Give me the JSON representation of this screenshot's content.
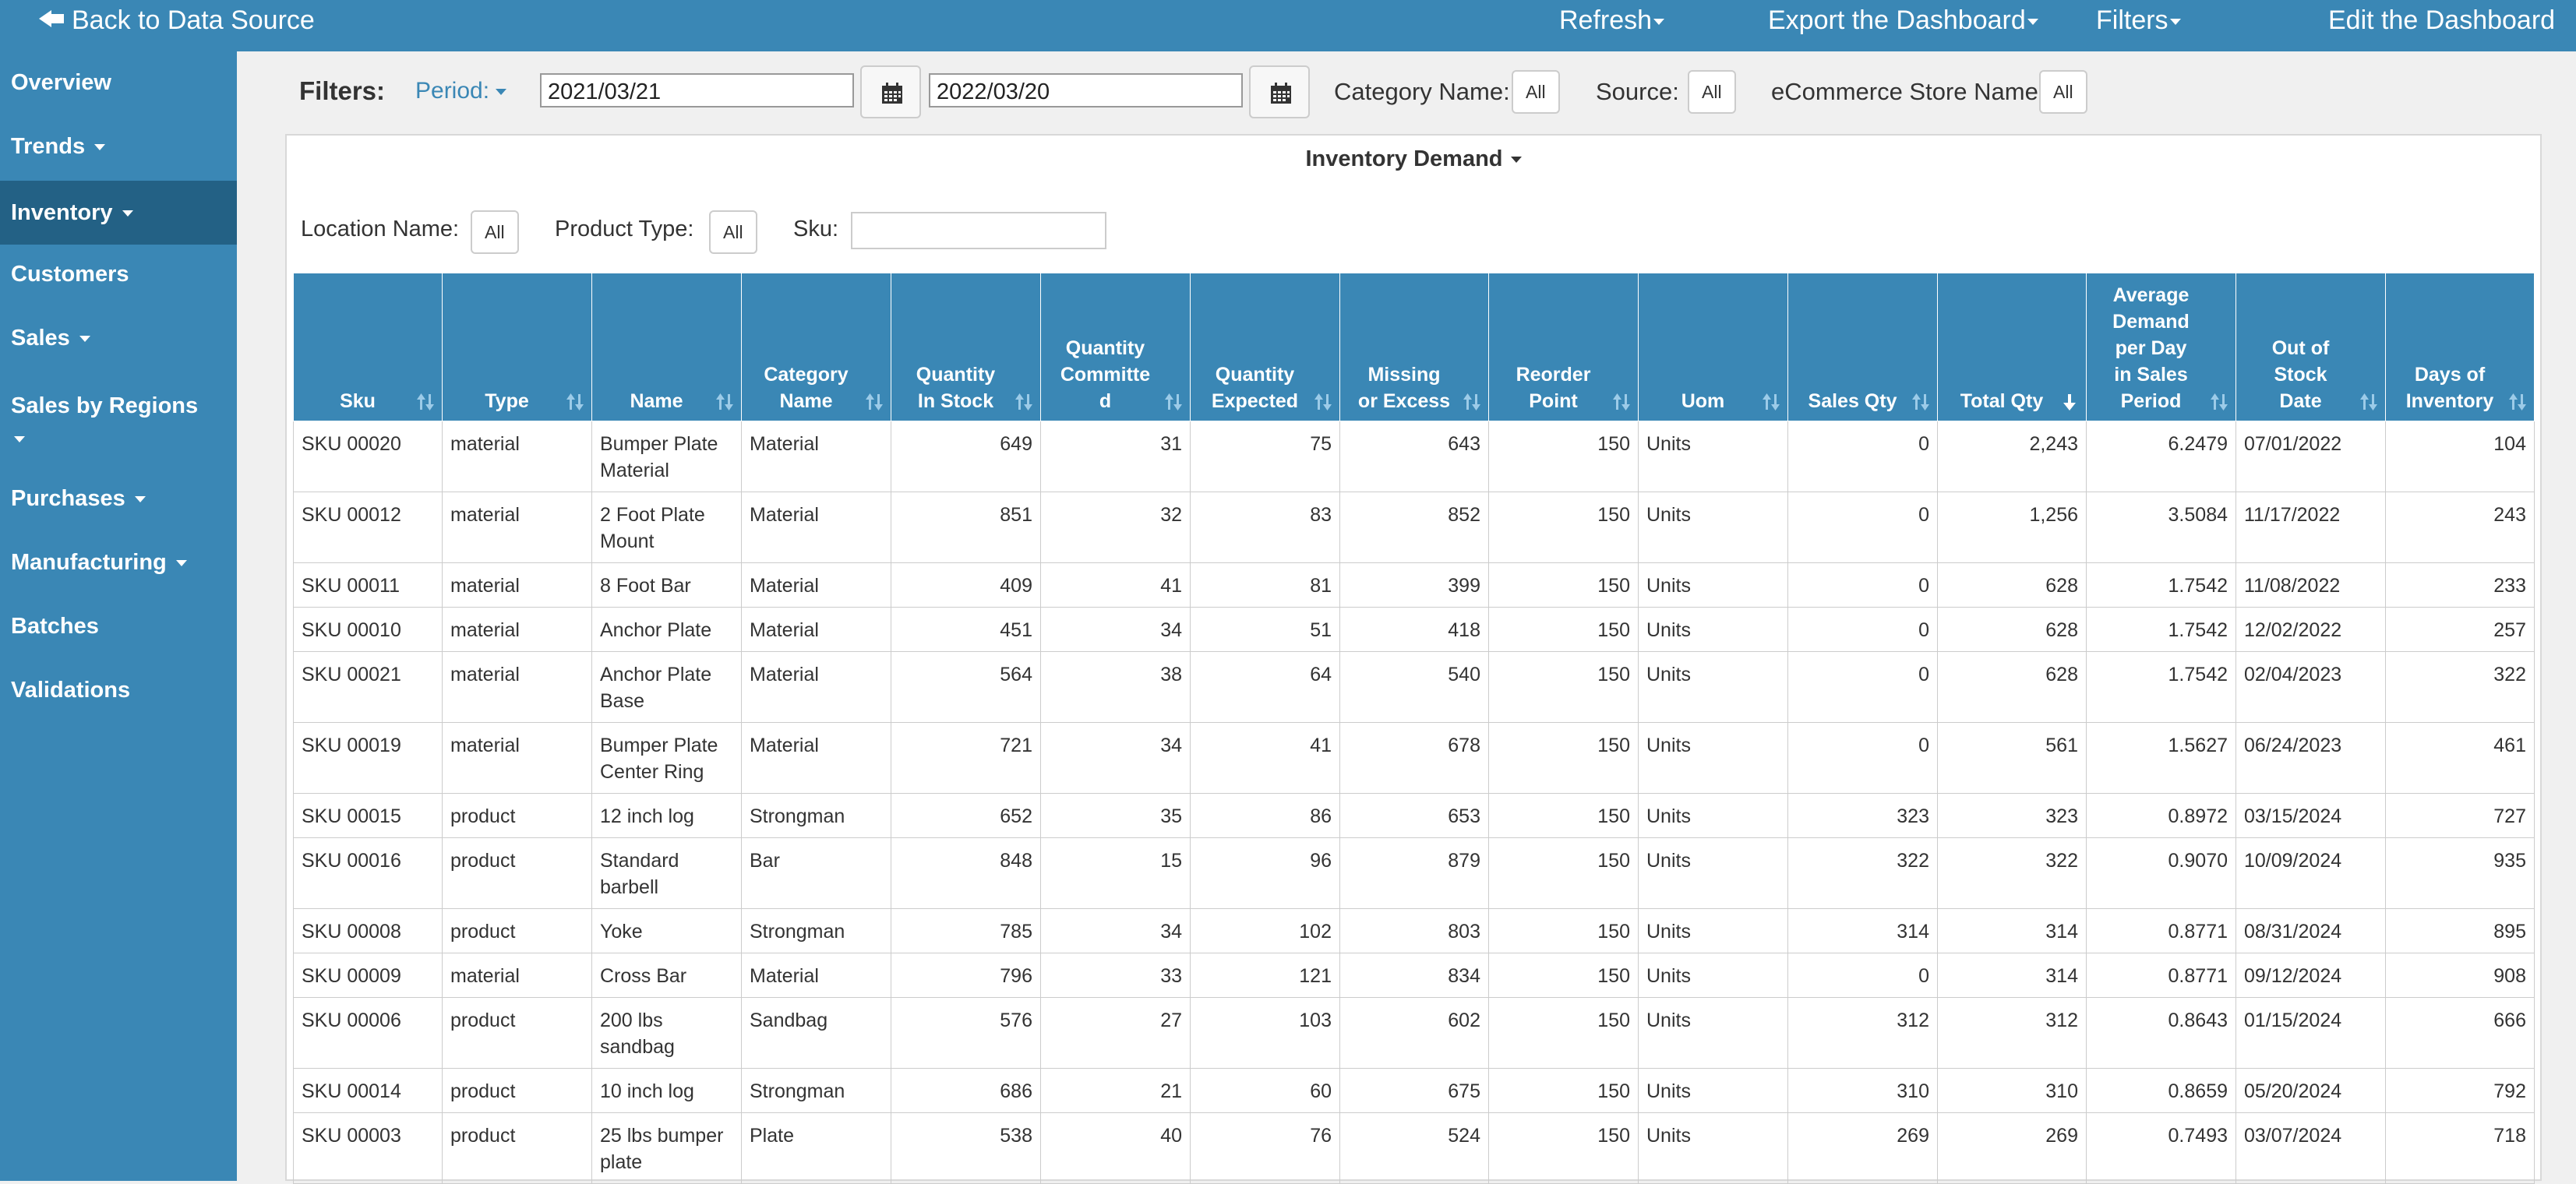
{
  "topbar": {
    "back": "Back to Data Source",
    "refresh": "Refresh",
    "export": "Export the Dashboard",
    "filters": "Filters",
    "edit": "Edit the Dashboard"
  },
  "sidebar": {
    "items": [
      {
        "label": "Overview"
      },
      {
        "label": "Trends"
      },
      {
        "label": "Inventory"
      },
      {
        "label": "Customers"
      },
      {
        "label": "Sales"
      },
      {
        "label": "Sales by Regions"
      },
      {
        "label": "Purchases"
      },
      {
        "label": "Manufacturing"
      },
      {
        "label": "Batches"
      },
      {
        "label": "Validations"
      }
    ]
  },
  "filters": {
    "title": "Filters:",
    "period_label": "Period:",
    "start_date": "2021/03/21",
    "end_date": "2022/03/20",
    "category_label": "Category Name:",
    "category_value": "All",
    "source_label": "Source:",
    "source_value": "All",
    "store_label": "eCommerce Store Name:",
    "store_value": "All"
  },
  "panel": {
    "title": "Inventory Demand",
    "location_label": "Location Name:",
    "location_value": "All",
    "product_type_label": "Product Type:",
    "product_type_value": "All",
    "sku_label": "Sku:",
    "sku_value": ""
  },
  "table": {
    "columns": [
      "Sku",
      "Type",
      "Name",
      "Category Name",
      "Quantity In Stock",
      "Quantity Committed",
      "Quantity Expected",
      "Missing or Excess",
      "Reorder Point",
      "Uom",
      "Sales Qty",
      "Total Qty",
      "Average Demand per Day in Sales Period",
      "Out of Stock Date",
      "Days of Inventory"
    ],
    "header_lines": [
      [
        "Sku"
      ],
      [
        "Type"
      ],
      [
        "Name"
      ],
      [
        "Category",
        "Name"
      ],
      [
        "Quantity",
        "In Stock"
      ],
      [
        "Quantity",
        "Committe",
        "d"
      ],
      [
        "Quantity",
        "Expected"
      ],
      [
        "Missing",
        "or Excess"
      ],
      [
        "Reorder",
        "Point"
      ],
      [
        "Uom"
      ],
      [
        "Sales Qty"
      ],
      [
        "Total Qty"
      ],
      [
        "Average",
        "Demand",
        "per Day",
        "in Sales",
        "Period"
      ],
      [
        "Out of",
        "Stock",
        "Date"
      ],
      [
        "Days of",
        "Inventory"
      ]
    ],
    "sorted_column": "Total Qty",
    "sort_direction": "descending",
    "rows": [
      [
        "SKU 00020",
        "material",
        "Bumper Plate Material",
        "Material",
        "649",
        "31",
        "75",
        "643",
        "150",
        "Units",
        "0",
        "2,243",
        "6.2479",
        "07/01/2022",
        "104"
      ],
      [
        "SKU 00012",
        "material",
        "2 Foot Plate Mount",
        "Material",
        "851",
        "32",
        "83",
        "852",
        "150",
        "Units",
        "0",
        "1,256",
        "3.5084",
        "11/17/2022",
        "243"
      ],
      [
        "SKU 00011",
        "material",
        "8 Foot Bar",
        "Material",
        "409",
        "41",
        "81",
        "399",
        "150",
        "Units",
        "0",
        "628",
        "1.7542",
        "11/08/2022",
        "233"
      ],
      [
        "SKU 00010",
        "material",
        "Anchor Plate",
        "Material",
        "451",
        "34",
        "51",
        "418",
        "150",
        "Units",
        "0",
        "628",
        "1.7542",
        "12/02/2022",
        "257"
      ],
      [
        "SKU 00021",
        "material",
        "Anchor Plate Base",
        "Material",
        "564",
        "38",
        "64",
        "540",
        "150",
        "Units",
        "0",
        "628",
        "1.7542",
        "02/04/2023",
        "322"
      ],
      [
        "SKU 00019",
        "material",
        "Bumper Plate Center Ring",
        "Material",
        "721",
        "34",
        "41",
        "678",
        "150",
        "Units",
        "0",
        "561",
        "1.5627",
        "06/24/2023",
        "461"
      ],
      [
        "SKU 00015",
        "product",
        "12 inch log",
        "Strongman",
        "652",
        "35",
        "86",
        "653",
        "150",
        "Units",
        "323",
        "323",
        "0.8972",
        "03/15/2024",
        "727"
      ],
      [
        "SKU 00016",
        "product",
        "Standard barbell",
        "Bar",
        "848",
        "15",
        "96",
        "879",
        "150",
        "Units",
        "322",
        "322",
        "0.9070",
        "10/09/2024",
        "935"
      ],
      [
        "SKU 00008",
        "product",
        "Yoke",
        "Strongman",
        "785",
        "34",
        "102",
        "803",
        "150",
        "Units",
        "314",
        "314",
        "0.8771",
        "08/31/2024",
        "895"
      ],
      [
        "SKU 00009",
        "material",
        "Cross Bar",
        "Material",
        "796",
        "33",
        "121",
        "834",
        "150",
        "Units",
        "0",
        "314",
        "0.8771",
        "09/12/2024",
        "908"
      ],
      [
        "SKU 00006",
        "product",
        "200 lbs sandbag",
        "Sandbag",
        "576",
        "27",
        "103",
        "602",
        "150",
        "Units",
        "312",
        "312",
        "0.8643",
        "01/15/2024",
        "666"
      ],
      [
        "SKU 00014",
        "product",
        "10 inch log",
        "Strongman",
        "686",
        "21",
        "60",
        "675",
        "150",
        "Units",
        "310",
        "310",
        "0.8659",
        "05/20/2024",
        "792"
      ],
      [
        "SKU 00003",
        "product",
        "25 lbs bumper plate",
        "Plate",
        "538",
        "40",
        "76",
        "524",
        "150",
        "Units",
        "269",
        "269",
        "0.7493",
        "03/07/2024",
        "718"
      ]
    ]
  },
  "colors": {
    "primary": "#3a87b5",
    "sidebar_active": "#236185",
    "background": "#f0f0f0"
  }
}
